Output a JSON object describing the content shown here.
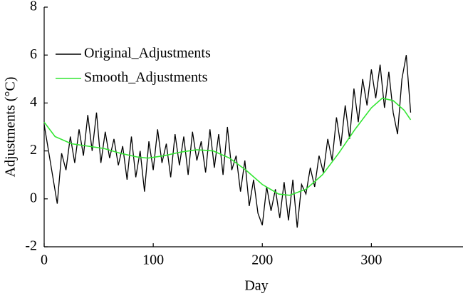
{
  "chart_data": {
    "type": "line",
    "xlabel": "Day",
    "ylabel": "Adjustments (°C)",
    "xlim": [
      0,
      384
    ],
    "xticks": [
      0,
      100,
      200,
      300
    ],
    "ylim": [
      -2,
      8
    ],
    "yticks": [
      -2,
      0,
      2,
      4,
      6,
      8
    ],
    "legend": "upper left",
    "series": [
      {
        "name": "Original_Adjustments",
        "color": "#000000",
        "x": [
          0,
          4,
          8,
          12,
          16,
          20,
          24,
          28,
          32,
          36,
          40,
          44,
          48,
          52,
          56,
          60,
          64,
          68,
          72,
          76,
          80,
          84,
          88,
          92,
          96,
          100,
          104,
          108,
          112,
          116,
          120,
          124,
          128,
          132,
          136,
          140,
          144,
          148,
          152,
          156,
          160,
          164,
          168,
          172,
          176,
          180,
          184,
          188,
          192,
          196,
          200,
          204,
          208,
          212,
          216,
          220,
          224,
          228,
          232,
          236,
          240,
          244,
          248,
          252,
          256,
          260,
          264,
          268,
          272,
          276,
          280,
          284,
          288,
          292,
          296,
          300,
          304,
          308,
          312,
          316,
          320,
          324,
          328,
          332,
          336
        ],
        "values": [
          3.1,
          2.0,
          0.9,
          -0.2,
          1.9,
          1.2,
          2.6,
          1.5,
          2.9,
          1.8,
          3.5,
          2.0,
          3.6,
          1.5,
          2.8,
          1.7,
          2.5,
          1.4,
          2.2,
          0.8,
          2.6,
          0.9,
          2.0,
          0.3,
          2.4,
          1.2,
          2.9,
          1.5,
          2.3,
          0.9,
          2.7,
          1.4,
          2.6,
          1.0,
          2.8,
          1.6,
          2.4,
          1.1,
          2.9,
          1.3,
          2.7,
          1.0,
          3.0,
          1.2,
          1.8,
          0.3,
          1.6,
          -0.3,
          0.8,
          -0.6,
          -1.1,
          0.5,
          -0.5,
          0.4,
          -0.8,
          0.7,
          -0.9,
          0.8,
          -1.2,
          0.6,
          0.2,
          1.3,
          0.5,
          1.8,
          1.1,
          2.5,
          1.6,
          3.4,
          2.2,
          3.9,
          2.5,
          4.6,
          3.2,
          5.0,
          3.9,
          5.4,
          4.2,
          5.6,
          3.8,
          5.3,
          3.6,
          2.7,
          5.0,
          6.0,
          3.6
        ]
      },
      {
        "name": "Smooth_Adjustments",
        "color": "#33e633",
        "x": [
          0,
          10,
          25,
          40,
          55,
          70,
          85,
          95,
          110,
          125,
          140,
          155,
          170,
          185,
          200,
          215,
          225,
          240,
          255,
          270,
          285,
          300,
          310,
          320,
          330,
          336
        ],
        "values": [
          3.2,
          2.6,
          2.3,
          2.2,
          2.1,
          1.9,
          1.75,
          1.7,
          1.8,
          1.95,
          2.05,
          2.0,
          1.7,
          1.2,
          0.6,
          0.2,
          0.15,
          0.4,
          1.0,
          1.9,
          2.9,
          3.8,
          4.2,
          4.1,
          3.7,
          3.3
        ]
      }
    ]
  }
}
